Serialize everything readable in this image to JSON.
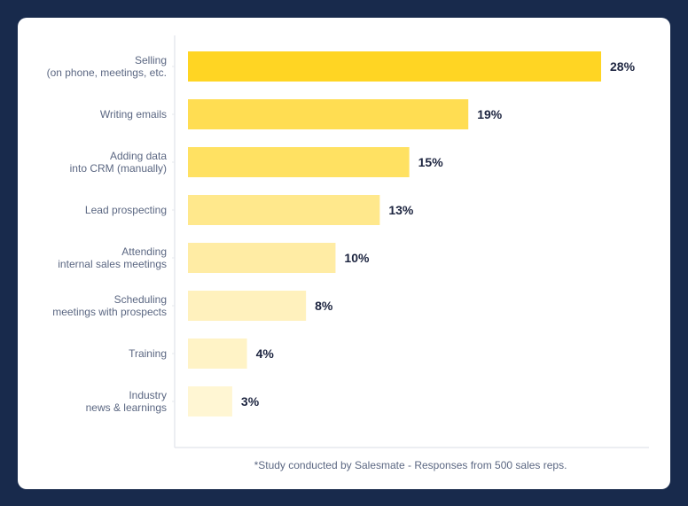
{
  "chart_data": {
    "type": "bar",
    "orientation": "horizontal",
    "categories": [
      [
        "Selling",
        "(on phone, meetings, etc."
      ],
      [
        "Writing emails"
      ],
      [
        "Adding data",
        "into CRM (manually)"
      ],
      [
        "Lead prospecting"
      ],
      [
        "Attending",
        "internal sales meetings"
      ],
      [
        "Scheduling",
        "meetings with prospects"
      ],
      [
        "Training"
      ],
      [
        "Industry",
        "news & learnings"
      ]
    ],
    "values": [
      28,
      19,
      15,
      13,
      10,
      8,
      4,
      3
    ],
    "data_labels": [
      "28%",
      "19%",
      "15%",
      "13%",
      "10%",
      "8%",
      "4%",
      "3%"
    ],
    "unit": "%",
    "colors": [
      "#ffd523",
      "#ffdd52",
      "#ffe162",
      "#ffe88c",
      "#ffeca4",
      "#fff1bd",
      "#fff3c6",
      "#fff6d3"
    ],
    "grid": false,
    "legend": "none",
    "footnote": "*Study conducted by Salesmate - Responses from 500 sales reps."
  },
  "colors": {
    "background": "#182a4c",
    "card": "#ffffff",
    "label_text": "#5b6782",
    "value_text": "#1d2540",
    "axis": "#e6e8ee"
  }
}
